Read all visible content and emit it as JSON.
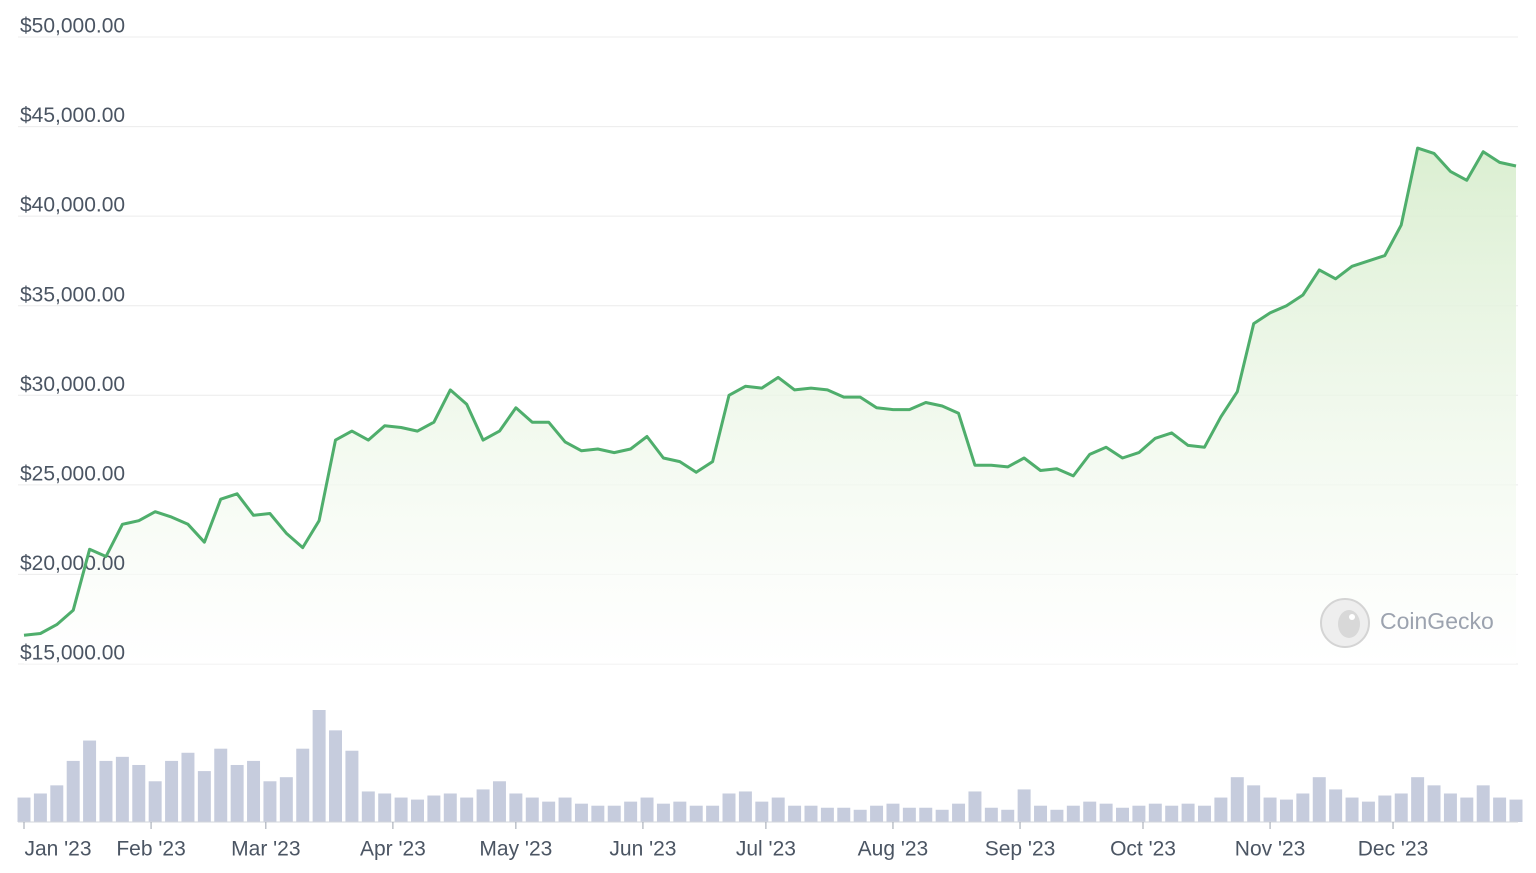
{
  "chart_data": {
    "type": "area",
    "x": [
      0,
      4,
      8,
      12,
      16,
      20,
      24,
      28,
      32,
      36,
      40,
      44,
      48,
      52,
      56,
      60,
      64,
      68,
      72,
      76,
      80,
      84,
      88,
      92,
      96,
      100,
      104,
      108,
      112,
      116,
      120,
      124,
      128,
      132,
      136,
      140,
      144,
      148,
      152,
      156,
      160,
      164,
      168,
      172,
      176,
      180,
      184,
      188,
      192,
      196,
      200,
      204,
      208,
      212,
      216,
      220,
      224,
      228,
      232,
      236,
      240,
      244,
      248,
      252,
      256,
      260,
      264,
      268,
      272,
      276,
      280,
      284,
      288,
      292,
      296,
      300,
      304,
      308,
      312,
      316,
      320,
      324,
      328,
      332,
      336,
      340,
      344,
      348,
      352,
      356,
      360,
      364
    ],
    "values": [
      16600,
      16700,
      17200,
      18000,
      21400,
      21000,
      22800,
      23000,
      23500,
      23200,
      22800,
      21800,
      24200,
      24500,
      23300,
      23400,
      22300,
      21500,
      23000,
      27500,
      28000,
      27500,
      28300,
      28200,
      28000,
      28500,
      30300,
      29500,
      27500,
      28000,
      29300,
      28500,
      28500,
      27400,
      26900,
      27000,
      26800,
      27000,
      27700,
      26500,
      26300,
      25700,
      26300,
      30000,
      30500,
      30400,
      31000,
      30300,
      30400,
      30300,
      29900,
      29900,
      29300,
      29200,
      29200,
      29600,
      29400,
      29000,
      26100,
      26100,
      26000,
      26500,
      25800,
      25900,
      25500,
      26700,
      27100,
      26500,
      26800,
      27600,
      27900,
      27200,
      27100,
      28800,
      30200,
      34000,
      34600,
      35000,
      35600,
      37000,
      36500,
      37200,
      37500,
      37800,
      39500,
      43800,
      43500,
      42500,
      42000,
      43600,
      43000,
      42800
    ],
    "color": "#4fae6c",
    "fill_color": "#e3f2dc",
    "xlim": [
      0,
      364
    ],
    "ylim": [
      15000,
      50000
    ],
    "yticks": [
      {
        "value": 15000,
        "label": "$15,000.00"
      },
      {
        "value": 20000,
        "label": "$20,000.00"
      },
      {
        "value": 25000,
        "label": "$25,000.00"
      },
      {
        "value": 30000,
        "label": "$30,000.00"
      },
      {
        "value": 35000,
        "label": "$35,000.00"
      },
      {
        "value": 40000,
        "label": "$40,000.00"
      },
      {
        "value": 45000,
        "label": "$45,000.00"
      },
      {
        "value": 50000,
        "label": "$50,000.00"
      }
    ],
    "xticks": [
      {
        "value": 0,
        "label": "Jan '23"
      },
      {
        "value": 31,
        "label": "Feb '23"
      },
      {
        "value": 59,
        "label": "Mar '23"
      },
      {
        "value": 90,
        "label": "Apr '23"
      },
      {
        "value": 120,
        "label": "May '23"
      },
      {
        "value": 151,
        "label": "Jun '23"
      },
      {
        "value": 181,
        "label": "Jul '23"
      },
      {
        "value": 212,
        "label": "Aug '23"
      },
      {
        "value": 243,
        "label": "Sep '23"
      },
      {
        "value": 273,
        "label": "Oct '23"
      },
      {
        "value": 304,
        "label": "Nov '23"
      },
      {
        "value": 334,
        "label": "Dec '23"
      }
    ],
    "grid": true,
    "volume": {
      "values": [
        12,
        14,
        18,
        30,
        40,
        30,
        32,
        28,
        20,
        30,
        34,
        25,
        36,
        28,
        30,
        20,
        22,
        36,
        55,
        45,
        35,
        15,
        14,
        12,
        11,
        13,
        14,
        12,
        16,
        20,
        14,
        12,
        10,
        12,
        9,
        8,
        8,
        10,
        12,
        9,
        10,
        8,
        8,
        14,
        15,
        10,
        12,
        8,
        8,
        7,
        7,
        6,
        8,
        9,
        7,
        7,
        6,
        9,
        15,
        7,
        6,
        16,
        8,
        6,
        8,
        10,
        9,
        7,
        8,
        9,
        8,
        9,
        8,
        12,
        22,
        18,
        12,
        11,
        14,
        22,
        16,
        12,
        10,
        13,
        14,
        22,
        18,
        14,
        12,
        18,
        12,
        11
      ],
      "color": "#c6ccdd"
    },
    "watermark": "CoinGecko"
  }
}
